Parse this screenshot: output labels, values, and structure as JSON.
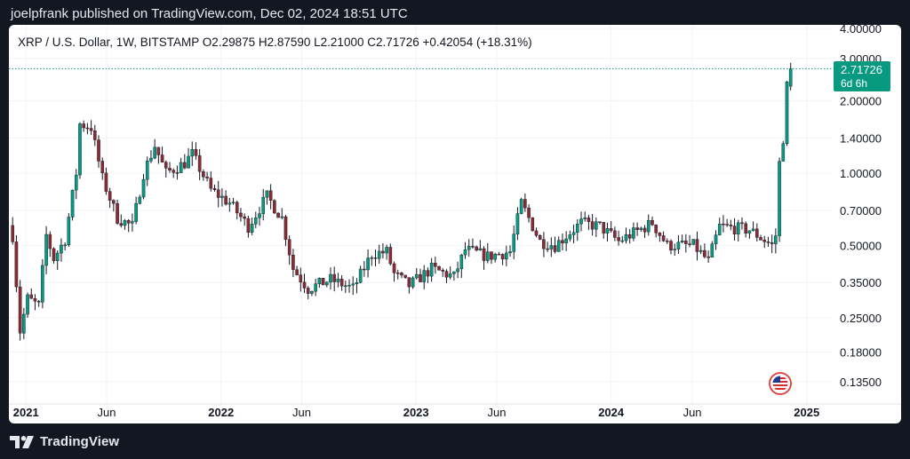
{
  "header": {
    "publisher_line": "joelpfrank published on TradingView.com, Dec 02, 2024 18:51 UTC"
  },
  "legend": {
    "text": "XRP / U.S. Dollar, 1W, BITSTAMP  O2.29875  H2.87590  L2.21000  C2.71726  +0.42054 (+18.31%)"
  },
  "price_tag": {
    "value": "2.71726",
    "countdown": "6d 6h",
    "color": "#089981"
  },
  "footer": {
    "brand": "TradingView"
  },
  "colors": {
    "up": "#089981",
    "down": "#8b2b34",
    "price_line": "#089981",
    "axis_text": "#131722"
  },
  "icons": {
    "flag": "us-flag-icon",
    "logo": "tradingview-logo-icon"
  },
  "chart_data": {
    "type": "candlestick",
    "symbol": "XRP / U.S. Dollar",
    "interval": "1W",
    "exchange": "BITSTAMP",
    "scale": "log",
    "grid": true,
    "ylim": [
      0.12,
      4.0
    ],
    "y_ticks": [
      {
        "value": 4.0,
        "label": "4.00000"
      },
      {
        "value": 3.0,
        "label": "3.00000"
      },
      {
        "value": 2.0,
        "label": "2.00000"
      },
      {
        "value": 1.4,
        "label": "1.40000"
      },
      {
        "value": 1.0,
        "label": "1.00000"
      },
      {
        "value": 0.7,
        "label": "0.70000"
      },
      {
        "value": 0.5,
        "label": "0.50000"
      },
      {
        "value": 0.35,
        "label": "0.35000"
      },
      {
        "value": 0.25,
        "label": "0.25000"
      },
      {
        "value": 0.18,
        "label": "0.18000"
      },
      {
        "value": 0.135,
        "label": "0.13500"
      }
    ],
    "x_ticks": [
      {
        "date": "2021-01-01",
        "label": "2021",
        "major": true
      },
      {
        "date": "2021-06-01",
        "label": "Jun",
        "major": false
      },
      {
        "date": "2022-01-01",
        "label": "2022",
        "major": true
      },
      {
        "date": "2022-06-01",
        "label": "Jun",
        "major": false
      },
      {
        "date": "2023-01-01",
        "label": "2023",
        "major": true
      },
      {
        "date": "2023-06-01",
        "label": "Jun",
        "major": false
      },
      {
        "date": "2024-01-01",
        "label": "2024",
        "major": true
      },
      {
        "date": "2024-06-01",
        "label": "Jun",
        "major": false
      },
      {
        "date": "2025-01-01",
        "label": "2025",
        "major": true
      }
    ],
    "last_price": 2.71726,
    "x_start": "2020-11-30",
    "x_end": "2025-02-17",
    "series_points": [
      [
        "2020-12-07",
        0.55
      ],
      [
        "2020-12-21",
        0.22
      ],
      [
        "2021-01-04",
        0.3
      ],
      [
        "2021-01-25",
        0.28
      ],
      [
        "2021-02-08",
        0.55
      ],
      [
        "2021-02-22",
        0.44
      ],
      [
        "2021-03-15",
        0.53
      ],
      [
        "2021-04-05",
        1.0
      ],
      [
        "2021-04-12",
        1.6
      ],
      [
        "2021-05-03",
        1.55
      ],
      [
        "2021-05-24",
        0.95
      ],
      [
        "2021-06-21",
        0.65
      ],
      [
        "2021-07-19",
        0.6
      ],
      [
        "2021-08-09",
        1.0
      ],
      [
        "2021-08-30",
        1.3
      ],
      [
        "2021-09-20",
        1.0
      ],
      [
        "2021-10-25",
        1.1
      ],
      [
        "2021-11-08",
        1.2
      ],
      [
        "2021-12-13",
        0.85
      ],
      [
        "2022-01-17",
        0.75
      ],
      [
        "2022-02-21",
        0.6
      ],
      [
        "2022-03-28",
        0.8
      ],
      [
        "2022-04-25",
        0.65
      ],
      [
        "2022-05-16",
        0.4
      ],
      [
        "2022-06-13",
        0.33
      ],
      [
        "2022-07-25",
        0.36
      ],
      [
        "2022-09-05",
        0.33
      ],
      [
        "2022-10-10",
        0.46
      ],
      [
        "2022-11-07",
        0.47
      ],
      [
        "2022-11-21",
        0.38
      ],
      [
        "2022-12-19",
        0.34
      ],
      [
        "2023-01-30",
        0.4
      ],
      [
        "2023-03-13",
        0.37
      ],
      [
        "2023-04-03",
        0.48
      ],
      [
        "2023-05-15",
        0.45
      ],
      [
        "2023-06-26",
        0.47
      ],
      [
        "2023-07-17",
        0.75
      ],
      [
        "2023-08-21",
        0.52
      ],
      [
        "2023-09-18",
        0.5
      ],
      [
        "2023-11-06",
        0.62
      ],
      [
        "2023-12-11",
        0.6
      ],
      [
        "2024-01-15",
        0.52
      ],
      [
        "2024-03-18",
        0.62
      ],
      [
        "2024-04-15",
        0.5
      ],
      [
        "2024-06-03",
        0.5
      ],
      [
        "2024-07-01",
        0.43
      ],
      [
        "2024-07-22",
        0.6
      ],
      [
        "2024-09-16",
        0.58
      ],
      [
        "2024-10-28",
        0.5
      ],
      [
        "2024-11-04",
        0.55
      ],
      [
        "2024-11-11",
        1.1
      ],
      [
        "2024-11-18",
        1.4
      ],
      [
        "2024-11-25",
        2.3
      ],
      [
        "2024-12-02",
        2.71726
      ]
    ]
  }
}
